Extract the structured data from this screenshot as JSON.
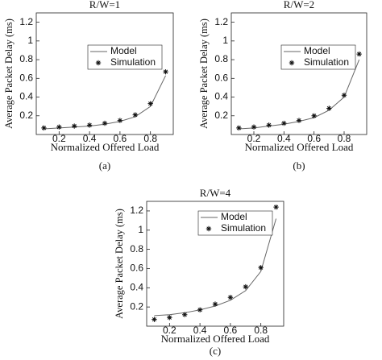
{
  "chart_data": [
    {
      "type": "line",
      "title": "R/W=1",
      "caption": "(a)",
      "xlabel": "Normalized Offered Load",
      "ylabel": "Average Packet Delay (ms)",
      "x": [
        0.1,
        0.2,
        0.3,
        0.4,
        0.5,
        0.6,
        0.7,
        0.8,
        0.9
      ],
      "series": [
        {
          "name": "Model",
          "color": "#666666",
          "marker": "none",
          "values": [
            0.06,
            0.07,
            0.08,
            0.09,
            0.11,
            0.14,
            0.19,
            0.3,
            0.63
          ]
        },
        {
          "name": "Simulation",
          "color": "#111111",
          "marker": "asterisk",
          "values": [
            0.07,
            0.08,
            0.09,
            0.1,
            0.12,
            0.15,
            0.21,
            0.33,
            0.67
          ]
        }
      ],
      "xlim": [
        0.05,
        0.95
      ],
      "ylim": [
        0,
        1.3
      ],
      "xticks": [
        0.2,
        0.4,
        0.6,
        0.8
      ],
      "yticks": [
        0.2,
        0.4,
        0.6,
        0.8,
        1,
        1.2
      ],
      "legend": "upper right"
    },
    {
      "type": "line",
      "title": "R/W=2",
      "caption": "(b)",
      "xlabel": "Normalized Offered Load",
      "ylabel": "Average Packet Delay (ms)",
      "x": [
        0.1,
        0.2,
        0.3,
        0.4,
        0.5,
        0.6,
        0.7,
        0.8,
        0.9
      ],
      "series": [
        {
          "name": "Model",
          "color": "#666666",
          "marker": "none",
          "values": [
            0.06,
            0.07,
            0.09,
            0.11,
            0.14,
            0.18,
            0.26,
            0.4,
            0.8
          ]
        },
        {
          "name": "Simulation",
          "color": "#111111",
          "marker": "asterisk",
          "values": [
            0.07,
            0.08,
            0.1,
            0.12,
            0.15,
            0.2,
            0.28,
            0.42,
            0.86
          ]
        }
      ],
      "xlim": [
        0.05,
        0.95
      ],
      "ylim": [
        0,
        1.3
      ],
      "xticks": [
        0.2,
        0.4,
        0.6,
        0.8
      ],
      "yticks": [
        0.2,
        0.4,
        0.6,
        0.8,
        1,
        1.2
      ],
      "legend": "upper right"
    },
    {
      "type": "line",
      "title": "R/W=4",
      "caption": "(c)",
      "xlabel": "Normalized Offered Load",
      "ylabel": "Average Packet Delay (ms)",
      "x": [
        0.1,
        0.2,
        0.3,
        0.4,
        0.5,
        0.6,
        0.7,
        0.8,
        0.9
      ],
      "series": [
        {
          "name": "Model",
          "color": "#666666",
          "marker": "none",
          "values": [
            0.11,
            0.12,
            0.14,
            0.17,
            0.21,
            0.27,
            0.37,
            0.57,
            1.12
          ]
        },
        {
          "name": "Simulation",
          "color": "#111111",
          "marker": "asterisk",
          "values": [
            0.07,
            0.09,
            0.12,
            0.17,
            0.23,
            0.3,
            0.41,
            0.61,
            1.24
          ]
        }
      ],
      "xlim": [
        0.05,
        0.95
      ],
      "ylim": [
        0,
        1.3
      ],
      "xticks": [
        0.2,
        0.4,
        0.6,
        0.8
      ],
      "yticks": [
        0.2,
        0.4,
        0.6,
        0.8,
        1,
        1.2
      ],
      "legend": "upper right"
    }
  ]
}
